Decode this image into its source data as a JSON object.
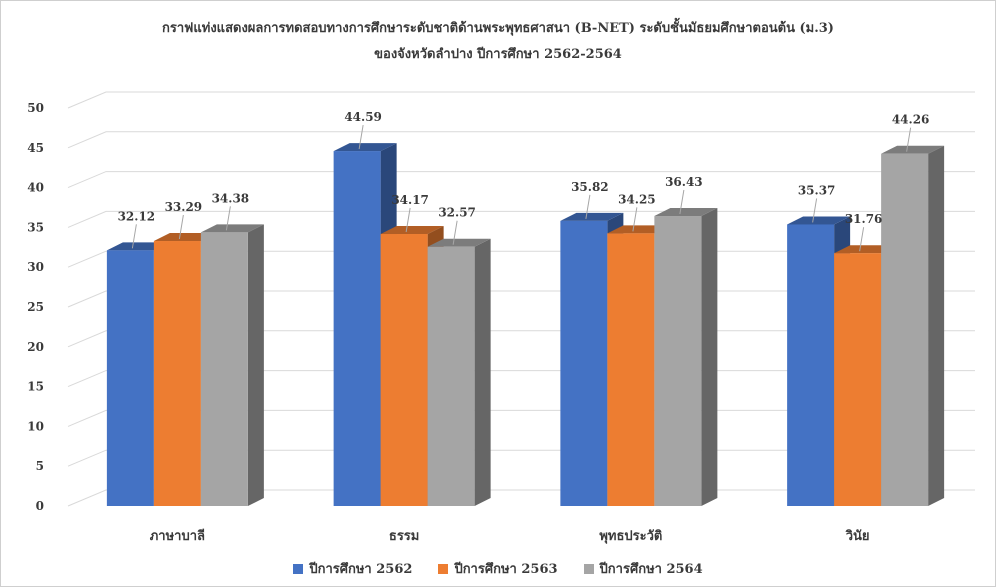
{
  "chart_data": {
    "type": "bar",
    "title": "กราฟแท่งแสดงผลการทดสอบทางการศึกษาระดับชาติด้านพระพุทธศาสนา (B-NET) ระดับชั้นมัธยมศึกษาตอนต้น (ม.3)",
    "subtitle": "ของจังหวัดลำปาง ปีการศึกษา 2562-2564",
    "categories": [
      "ภาษาบาลี",
      "ธรรม",
      "พุทธประวัติ",
      "วินัย"
    ],
    "series": [
      {
        "name": "ปีการศึกษา 2562",
        "color": "#4472c4",
        "values": [
          32.12,
          44.59,
          35.82,
          35.37
        ]
      },
      {
        "name": "ปีการศึกษา 2563",
        "color": "#ed7d31",
        "values": [
          33.29,
          34.17,
          34.25,
          31.76
        ]
      },
      {
        "name": "ปีการศึกษา 2564",
        "color": "#a5a5a5",
        "values": [
          34.38,
          32.57,
          36.43,
          44.26
        ]
      }
    ],
    "ylim": [
      0,
      50
    ],
    "yticks": [
      0,
      5,
      10,
      15,
      20,
      25,
      30,
      35,
      40,
      45,
      50
    ],
    "grid": true,
    "legend": "bottom",
    "style": "3d-column"
  }
}
